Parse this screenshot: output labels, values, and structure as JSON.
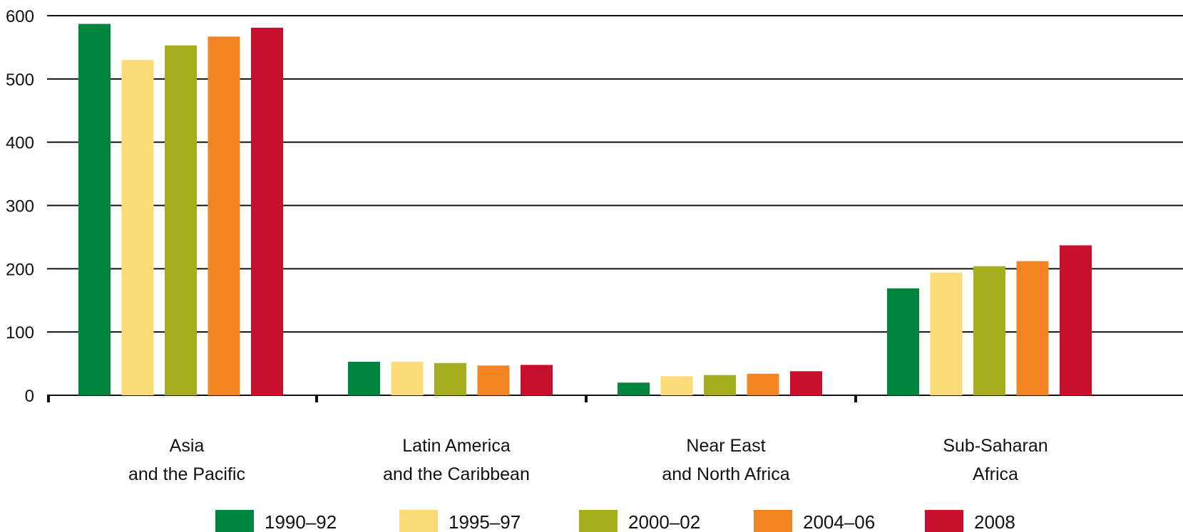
{
  "chart_data": {
    "type": "bar",
    "title": "",
    "xlabel": "",
    "ylabel": "",
    "ylim": [
      0,
      600
    ],
    "yticks": [
      "0",
      "100",
      "200",
      "300",
      "400",
      "500",
      "600"
    ],
    "grid": true,
    "legend_position": "bottom",
    "categories": [
      [
        "Asia",
        "and the Pacific"
      ],
      [
        "Latin America",
        "and the Caribbean"
      ],
      [
        "Near East",
        "and North Africa"
      ],
      [
        "Sub-Saharan",
        "Africa"
      ]
    ],
    "series": [
      {
        "name": "1990–92",
        "color": "#00853F",
        "values": [
          587,
          53,
          20,
          169
        ]
      },
      {
        "name": "1995–97",
        "color": "#FDDB78",
        "values": [
          530,
          53,
          30,
          194
        ]
      },
      {
        "name": "2000–02",
        "color": "#A6AD1E",
        "values": [
          553,
          51,
          32,
          204
        ]
      },
      {
        "name": "2004–06",
        "color": "#F28522",
        "values": [
          567,
          47,
          34,
          212
        ]
      },
      {
        "name": "2008",
        "color": "#C8102E",
        "values": [
          581,
          48,
          38,
          237
        ]
      }
    ]
  }
}
